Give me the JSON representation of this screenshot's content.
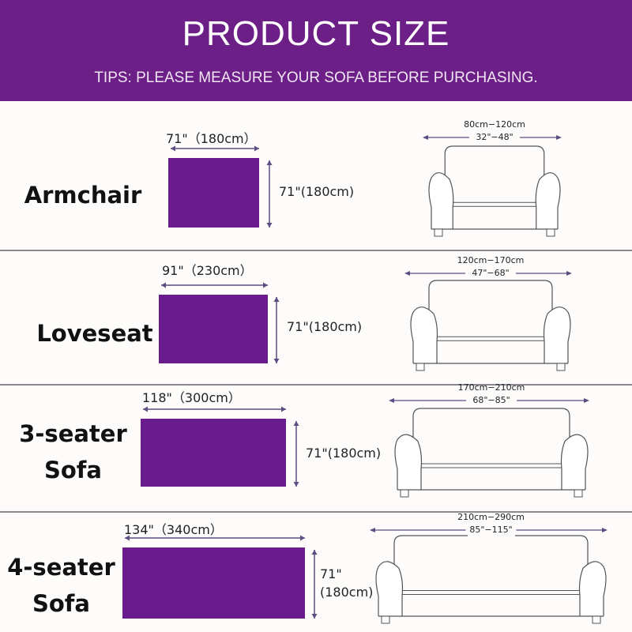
{
  "header": {
    "title": "PRODUCT SIZE",
    "tips": "TIPS: PLEASE MEASURE YOUR SOFA BEFORE PURCHASING."
  },
  "colors": {
    "header": "#6c1f86",
    "cover": "#6a1b8c",
    "arrow": "#5b4d82"
  },
  "rows": [
    {
      "label": "Armchair",
      "cover_width": "71\"（180cm）",
      "cover_height": "71\"(180cm)",
      "sofa_cm": "80cm−120cm",
      "sofa_in": "32\"−48\""
    },
    {
      "label": "Loveseat",
      "cover_width": "91\"（230cm）",
      "cover_height": "71\"(180cm)",
      "sofa_cm": "120cm−170cm",
      "sofa_in": "47\"−68\""
    },
    {
      "label": "3-seater Sofa",
      "cover_width": "118\"（300cm）",
      "cover_height": "71\"(180cm)",
      "sofa_cm": "170cm−210cm",
      "sofa_in": "68\"−85\""
    },
    {
      "label": "4-seater Sofa",
      "cover_width": "134\"（340cm）",
      "cover_height": "71\"\n(180cm)",
      "sofa_cm": "210cm−290cm",
      "sofa_in": "85\"−115\""
    }
  ]
}
